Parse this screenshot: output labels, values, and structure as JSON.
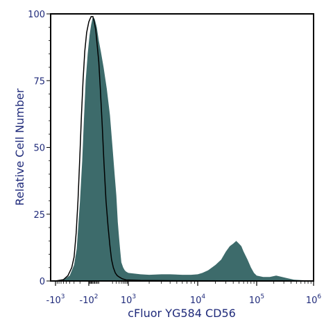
{
  "chart_data": {
    "type": "area",
    "xlabel": "cFluor YG584 CD56",
    "ylabel": "Relative Cell Number",
    "x_scale": "biexponential",
    "ylim": [
      0,
      100
    ],
    "y_ticks": [
      {
        "value": 0,
        "label": "0"
      },
      {
        "value": 25,
        "label": "25"
      },
      {
        "value": 50,
        "label": "50"
      },
      {
        "value": 75,
        "label": "75"
      },
      {
        "value": 100,
        "label": "100"
      }
    ],
    "x_ticks": [
      {
        "value": -1000,
        "base": "-10",
        "exp": "3"
      },
      {
        "value": -100,
        "base": "-10",
        "exp": "2"
      },
      {
        "value": 1000,
        "base": "10",
        "exp": "3"
      },
      {
        "value": 10000,
        "base": "10",
        "exp": "4"
      },
      {
        "value": 100000,
        "base": "10",
        "exp": "5"
      },
      {
        "value": 1000000,
        "base": "10",
        "exp": "6"
      }
    ],
    "series": [
      {
        "kind": "filled",
        "color": "#3d6b6b",
        "points": [
          [
            -1000,
            0
          ],
          [
            -600,
            0.5
          ],
          [
            -400,
            2
          ],
          [
            -300,
            6
          ],
          [
            -250,
            12
          ],
          [
            -200,
            30
          ],
          [
            -170,
            45
          ],
          [
            -150,
            60
          ],
          [
            -130,
            75
          ],
          [
            -110,
            85
          ],
          [
            -90,
            92
          ],
          [
            -70,
            96
          ],
          [
            -50,
            99
          ],
          [
            -30,
            98
          ],
          [
            -10,
            95
          ],
          [
            10,
            90
          ],
          [
            30,
            86
          ],
          [
            60,
            80
          ],
          [
            100,
            72
          ],
          [
            150,
            62
          ],
          [
            200,
            50
          ],
          [
            250,
            40
          ],
          [
            300,
            32
          ],
          [
            350,
            22
          ],
          [
            400,
            16
          ],
          [
            450,
            11
          ],
          [
            500,
            7
          ],
          [
            600,
            5
          ],
          [
            700,
            4
          ],
          [
            800,
            3.5
          ],
          [
            1000,
            3
          ],
          [
            1500,
            2.5
          ],
          [
            2000,
            2.3
          ],
          [
            3000,
            2.5
          ],
          [
            4000,
            2.5
          ],
          [
            6000,
            2.3
          ],
          [
            8000,
            2.3
          ],
          [
            10000,
            2.5
          ],
          [
            12000,
            3
          ],
          [
            15000,
            4
          ],
          [
            20000,
            6
          ],
          [
            25000,
            8
          ],
          [
            30000,
            11
          ],
          [
            35000,
            13
          ],
          [
            40000,
            14
          ],
          [
            45000,
            15
          ],
          [
            50000,
            14
          ],
          [
            55000,
            13
          ],
          [
            60000,
            11
          ],
          [
            70000,
            8
          ],
          [
            80000,
            5
          ],
          [
            90000,
            3
          ],
          [
            100000,
            2
          ],
          [
            130000,
            1.5
          ],
          [
            170000,
            1.5
          ],
          [
            220000,
            2
          ],
          [
            280000,
            1.5
          ],
          [
            350000,
            1
          ],
          [
            450000,
            0.5
          ],
          [
            600000,
            0.3
          ],
          [
            1000000,
            0
          ]
        ]
      },
      {
        "kind": "outline",
        "color": "#000000",
        "points": [
          [
            -1000,
            0
          ],
          [
            -600,
            0.5
          ],
          [
            -450,
            2
          ],
          [
            -350,
            5
          ],
          [
            -300,
            9
          ],
          [
            -260,
            18
          ],
          [
            -230,
            30
          ],
          [
            -200,
            48
          ],
          [
            -180,
            62
          ],
          [
            -160,
            75
          ],
          [
            -140,
            86
          ],
          [
            -120,
            93
          ],
          [
            -100,
            97
          ],
          [
            -85,
            98
          ],
          [
            -70,
            99
          ],
          [
            -50,
            99
          ],
          [
            -35,
            97
          ],
          [
            -20,
            94
          ],
          [
            -5,
            88
          ],
          [
            10,
            82
          ],
          [
            25,
            72
          ],
          [
            45,
            58
          ],
          [
            65,
            44
          ],
          [
            90,
            30
          ],
          [
            120,
            20
          ],
          [
            150,
            13
          ],
          [
            180,
            8
          ],
          [
            220,
            5
          ],
          [
            270,
            3
          ],
          [
            330,
            2
          ],
          [
            400,
            1.5
          ],
          [
            550,
            0.8
          ],
          [
            800,
            0.4
          ],
          [
            1500,
            0.2
          ],
          [
            5000,
            0.1
          ],
          [
            1000000,
            0
          ]
        ]
      }
    ]
  }
}
